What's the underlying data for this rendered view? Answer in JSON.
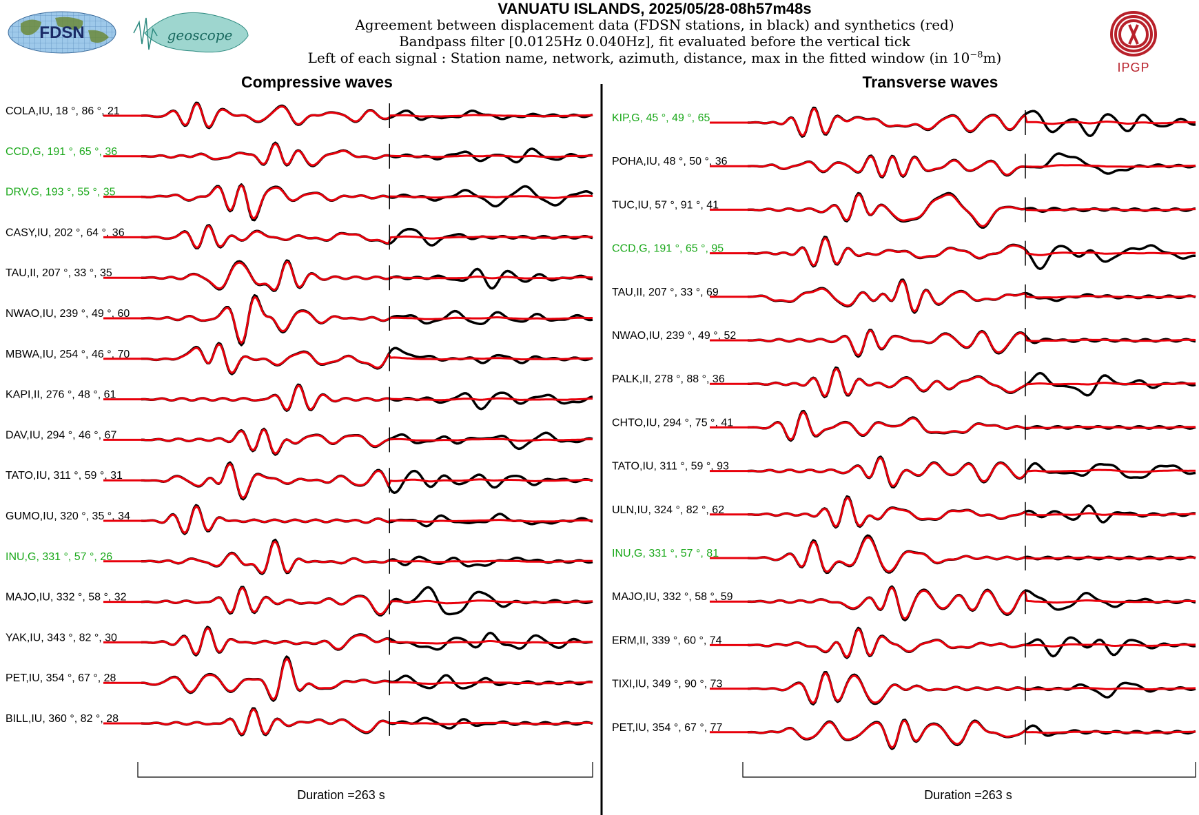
{
  "header": {
    "title": "VANUATU ISLANDS, 2025/05/28-08h57m48s",
    "line1": "Agreement between displacement data (FDSN stations, in black) and synthetics (red)",
    "line2": "Bandpass filter [0.0125Hz 0.040Hz], fit evaluated before the vertical tick",
    "line3_prefix": "Left of each signal : Station name, network, azimuth, distance, max in the fitted window (in 10",
    "line3_exp": "−8",
    "line3_suffix": "m)"
  },
  "logos": {
    "fdsn": "FDSN",
    "geoscope": "geoscope",
    "ipgp": "IPGP"
  },
  "colors": {
    "data": "#000000",
    "synthetic": "#e8000b",
    "highlight_station": "#1aa81a",
    "normal_station": "#000000",
    "ipgp": "#b8202a"
  },
  "chart_data": [
    {
      "type": "line",
      "title": "Compressive waves",
      "xlabel": "Duration =263 s",
      "duration_s": 263,
      "series": [
        {
          "name": "data"
        },
        {
          "name": "synthetics"
        }
      ],
      "stations": [
        {
          "label": "COLA,IU, 18 °, 86 °, 21",
          "station": "COLA",
          "network": "IU",
          "azimuth": 18,
          "distance": 86,
          "max": 21,
          "highlight": false
        },
        {
          "label": "CCD,G, 191 °, 65 °, 36",
          "station": "CCD",
          "network": "G",
          "azimuth": 191,
          "distance": 65,
          "max": 36,
          "highlight": true
        },
        {
          "label": "DRV,G, 193 °, 55 °, 35",
          "station": "DRV",
          "network": "G",
          "azimuth": 193,
          "distance": 55,
          "max": 35,
          "highlight": true
        },
        {
          "label": "CASY,IU, 202 °, 64 °, 36",
          "station": "CASY",
          "network": "IU",
          "azimuth": 202,
          "distance": 64,
          "max": 36,
          "highlight": false
        },
        {
          "label": "TAU,II, 207 °, 33 °, 35",
          "station": "TAU",
          "network": "II",
          "azimuth": 207,
          "distance": 33,
          "max": 35,
          "highlight": false
        },
        {
          "label": "NWAO,IU, 239 °, 49 °, 60",
          "station": "NWAO",
          "network": "IU",
          "azimuth": 239,
          "distance": 49,
          "max": 60,
          "highlight": false
        },
        {
          "label": "MBWA,IU, 254 °, 46 °, 70",
          "station": "MBWA",
          "network": "IU",
          "azimuth": 254,
          "distance": 46,
          "max": 70,
          "highlight": false
        },
        {
          "label": "KAPI,II, 276 °, 48 °, 61",
          "station": "KAPI",
          "network": "II",
          "azimuth": 276,
          "distance": 48,
          "max": 61,
          "highlight": false
        },
        {
          "label": "DAV,IU, 294 °, 46 °, 67",
          "station": "DAV",
          "network": "IU",
          "azimuth": 294,
          "distance": 46,
          "max": 67,
          "highlight": false
        },
        {
          "label": "TATO,IU, 311 °, 59 °, 31",
          "station": "TATO",
          "network": "IU",
          "azimuth": 311,
          "distance": 59,
          "max": 31,
          "highlight": false
        },
        {
          "label": "GUMO,IU, 320 °, 35 °, 34",
          "station": "GUMO",
          "network": "IU",
          "azimuth": 320,
          "distance": 35,
          "max": 34,
          "highlight": false
        },
        {
          "label": "INU,G, 331 °, 57 °, 26",
          "station": "INU",
          "network": "G",
          "azimuth": 331,
          "distance": 57,
          "max": 26,
          "highlight": true
        },
        {
          "label": "MAJO,IU, 332 °, 58 °, 32",
          "station": "MAJO",
          "network": "IU",
          "azimuth": 332,
          "distance": 58,
          "max": 32,
          "highlight": false
        },
        {
          "label": "YAK,IU, 343 °, 82 °, 30",
          "station": "YAK",
          "network": "IU",
          "azimuth": 343,
          "distance": 82,
          "max": 30,
          "highlight": false
        },
        {
          "label": "PET,IU, 354 °, 67 °, 28",
          "station": "PET",
          "network": "IU",
          "azimuth": 354,
          "distance": 67,
          "max": 28,
          "highlight": false
        },
        {
          "label": "BILL,IU, 360 °, 82 °, 28",
          "station": "BILL",
          "network": "IU",
          "azimuth": 360,
          "distance": 82,
          "max": 28,
          "highlight": false
        }
      ]
    },
    {
      "type": "line",
      "title": "Transverse waves",
      "xlabel": "Duration =263 s",
      "duration_s": 263,
      "series": [
        {
          "name": "data"
        },
        {
          "name": "synthetics"
        }
      ],
      "stations": [
        {
          "label": "KIP,G, 45 °, 49 °, 65",
          "station": "KIP",
          "network": "G",
          "azimuth": 45,
          "distance": 49,
          "max": 65,
          "highlight": true
        },
        {
          "label": "POHA,IU, 48 °, 50 °, 36",
          "station": "POHA",
          "network": "IU",
          "azimuth": 48,
          "distance": 50,
          "max": 36,
          "highlight": false
        },
        {
          "label": "TUC,IU, 57 °, 91 °, 41",
          "station": "TUC",
          "network": "IU",
          "azimuth": 57,
          "distance": 91,
          "max": 41,
          "highlight": false
        },
        {
          "label": "CCD,G, 191 °, 65 °, 95",
          "station": "CCD",
          "network": "G",
          "azimuth": 191,
          "distance": 65,
          "max": 95,
          "highlight": true
        },
        {
          "label": "TAU,II, 207 °, 33 °, 69",
          "station": "TAU",
          "network": "II",
          "azimuth": 207,
          "distance": 33,
          "max": 69,
          "highlight": false
        },
        {
          "label": "NWAO,IU, 239 °, 49 °, 52",
          "station": "NWAO",
          "network": "IU",
          "azimuth": 239,
          "distance": 49,
          "max": 52,
          "highlight": false
        },
        {
          "label": "PALK,II, 278 °, 88 °, 36",
          "station": "PALK",
          "network": "II",
          "azimuth": 278,
          "distance": 88,
          "max": 36,
          "highlight": false
        },
        {
          "label": "CHTO,IU, 294 °, 75 °, 41",
          "station": "CHTO",
          "network": "IU",
          "azimuth": 294,
          "distance": 75,
          "max": 41,
          "highlight": false
        },
        {
          "label": "TATO,IU, 311 °, 59 °, 93",
          "station": "TATO",
          "network": "IU",
          "azimuth": 311,
          "distance": 59,
          "max": 93,
          "highlight": false
        },
        {
          "label": "ULN,IU, 324 °, 82 °, 62",
          "station": "ULN",
          "network": "IU",
          "azimuth": 324,
          "distance": 82,
          "max": 62,
          "highlight": false
        },
        {
          "label": "INU,G, 331 °, 57 °, 81",
          "station": "INU",
          "network": "G",
          "azimuth": 331,
          "distance": 57,
          "max": 81,
          "highlight": true
        },
        {
          "label": "MAJO,IU, 332 °, 58 °, 59",
          "station": "MAJO",
          "network": "IU",
          "azimuth": 332,
          "distance": 58,
          "max": 59,
          "highlight": false
        },
        {
          "label": "ERM,II, 339 °, 60 °, 74",
          "station": "ERM",
          "network": "II",
          "azimuth": 339,
          "distance": 60,
          "max": 74,
          "highlight": false
        },
        {
          "label": "TIXI,IU, 349 °, 90 °, 73",
          "station": "TIXI",
          "network": "IU",
          "azimuth": 349,
          "distance": 90,
          "max": 73,
          "highlight": false
        },
        {
          "label": "PET,IU, 354 °, 67 °, 77",
          "station": "PET",
          "network": "IU",
          "azimuth": 354,
          "distance": 67,
          "max": 77,
          "highlight": false
        }
      ]
    }
  ]
}
